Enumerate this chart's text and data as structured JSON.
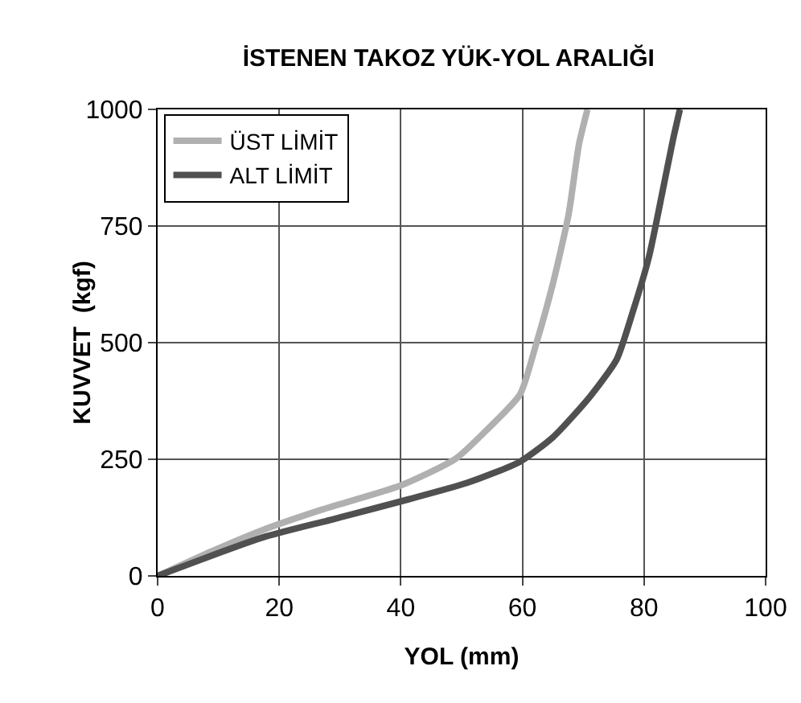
{
  "chart_data": {
    "type": "line",
    "title": "İSTENEN TAKOZ YÜK-YOL ARALIĞI",
    "xlabel": "YOL (mm)",
    "ylabel": "KUVVET  (kgf)",
    "xlim": [
      0,
      100
    ],
    "xticks": [
      0,
      20,
      40,
      60,
      80,
      100
    ],
    "ylim": [
      0,
      1000
    ],
    "yticks": [
      0,
      250,
      500,
      750,
      1000
    ],
    "grid": true,
    "legend": "top left",
    "marker": "none",
    "line_style": "solid",
    "series": [
      {
        "name": "ÜST LİMİT",
        "color": "#b0b0b0",
        "x": [
          0,
          8.4,
          17.2,
          27,
          40,
          49,
          54.3,
          59.6,
          62.3,
          65,
          67.6,
          69.3,
          70.7
        ],
        "values": [
          0,
          50,
          98,
          142,
          194,
          251,
          315,
          389,
          499,
          626,
          775,
          925,
          1000
        ]
      },
      {
        "name": "ALT LİMİT",
        "color": "#505050",
        "x": [
          0,
          17.2,
          29.6,
          50.8,
          59.6,
          65,
          71.1,
          75.5,
          78.2,
          80.8,
          83,
          84.8,
          85.9
        ],
        "values": [
          0,
          82,
          124,
          199,
          245,
          297,
          384,
          464,
          568,
          683,
          821,
          937,
          1000
        ]
      }
    ]
  }
}
